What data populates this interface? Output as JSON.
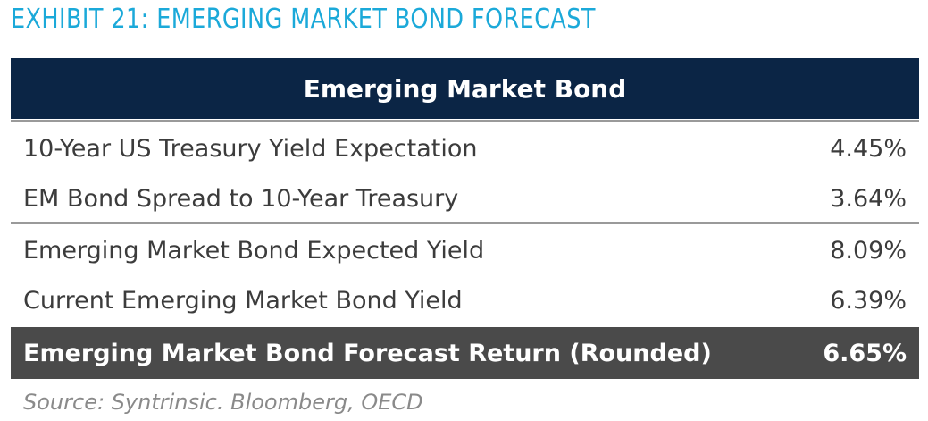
{
  "header": {
    "title": "EXHIBIT 21: EMERGING MARKET BOND FORECAST"
  },
  "table": {
    "heading": "Emerging Market Bond",
    "rows": [
      [
        "10-Year US Treasury Yield Expectation",
        "4.45%"
      ],
      [
        "EM Bond Spread to 10-Year Treasury",
        "3.64%"
      ],
      [
        "Emerging Market Bond Expected Yield",
        "8.09%"
      ],
      [
        "Current Emerging Market Bond Yield",
        "6.39%"
      ]
    ],
    "total": [
      "Emerging Market Bond Forecast Return (Rounded)",
      "6.65%"
    ]
  },
  "footer": {
    "source": "Source: Syntrinsic. Bloomberg, OECD"
  }
}
